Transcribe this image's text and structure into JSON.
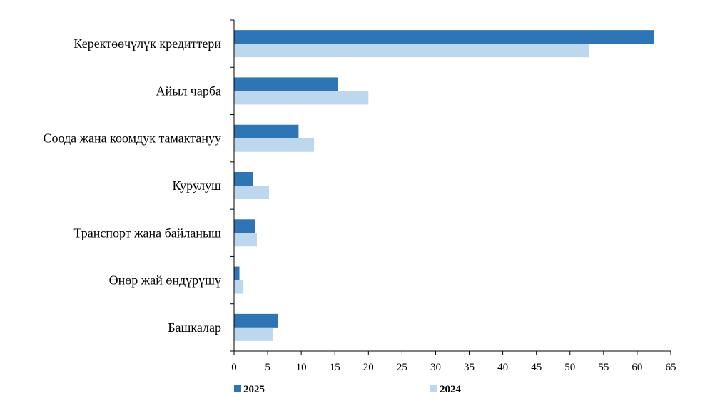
{
  "chart_data": {
    "type": "bar",
    "orientation": "horizontal",
    "categories": [
      "Керектөөчүлүк кредиттери",
      "Айыл чарба",
      "Соода жана коомдук тамактануу",
      "Курулуш",
      "Транспорт жана байланыш",
      "Өнөр жай өндүрүшү",
      "Башкалар"
    ],
    "series": [
      {
        "name": "2025",
        "color": "#2e75b6",
        "values": [
          62.5,
          15.5,
          9.6,
          2.8,
          3.1,
          0.8,
          6.5
        ]
      },
      {
        "name": "2024",
        "color": "#bdd7ee",
        "values": [
          52.8,
          20.0,
          11.9,
          5.2,
          3.4,
          1.4,
          5.8
        ]
      }
    ],
    "xlim": [
      0,
      65
    ],
    "xticks": [
      0,
      5,
      10,
      15,
      20,
      25,
      30,
      35,
      40,
      45,
      50,
      55,
      60,
      65
    ],
    "grid": false,
    "legend_position": "bottom"
  }
}
